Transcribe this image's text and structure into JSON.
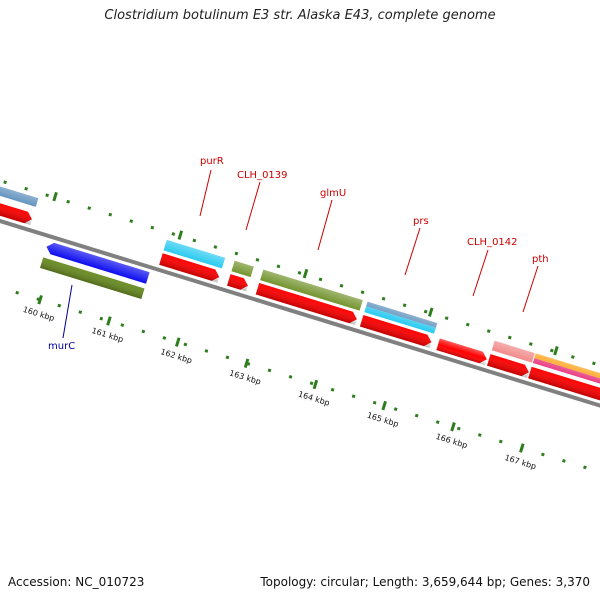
{
  "title": "Clostridium botulinum E3 str. Alaska E43, complete genome",
  "footer": {
    "accession": "Accession: NC_010723",
    "summary": "Topology: circular; Length: 3,659,644 bp; Genes: 3,370"
  },
  "colors": {
    "backbone": "#808080",
    "cds": "#ff0000",
    "cds_pink": "#e8307a",
    "gene_green": "#6b8e23",
    "gene_blue": "#0000ee",
    "gene_cyan": "#1ec8f0",
    "gene_steel": "#4f86b6",
    "gene_salmon": "#f08080",
    "gene_orange": "#ff9900",
    "tick": "#2e7d1e",
    "label_red": "#cc0000",
    "label_blue": "#000099"
  },
  "kbp_ticks": [
    "160 kbp",
    "161 kbp",
    "162 kbp",
    "163 kbp",
    "164 kbp",
    "165 kbp",
    "166 kbp",
    "167 kbp"
  ],
  "gene_labels": [
    {
      "name": "murC",
      "color": "blue"
    },
    {
      "name": "purR",
      "color": "red"
    },
    {
      "name": "CLH_0139",
      "color": "red"
    },
    {
      "name": "glmU",
      "color": "red"
    },
    {
      "name": "prs",
      "color": "red"
    },
    {
      "name": "CLH_0142",
      "color": "red"
    },
    {
      "name": "pth",
      "color": "red"
    }
  ]
}
